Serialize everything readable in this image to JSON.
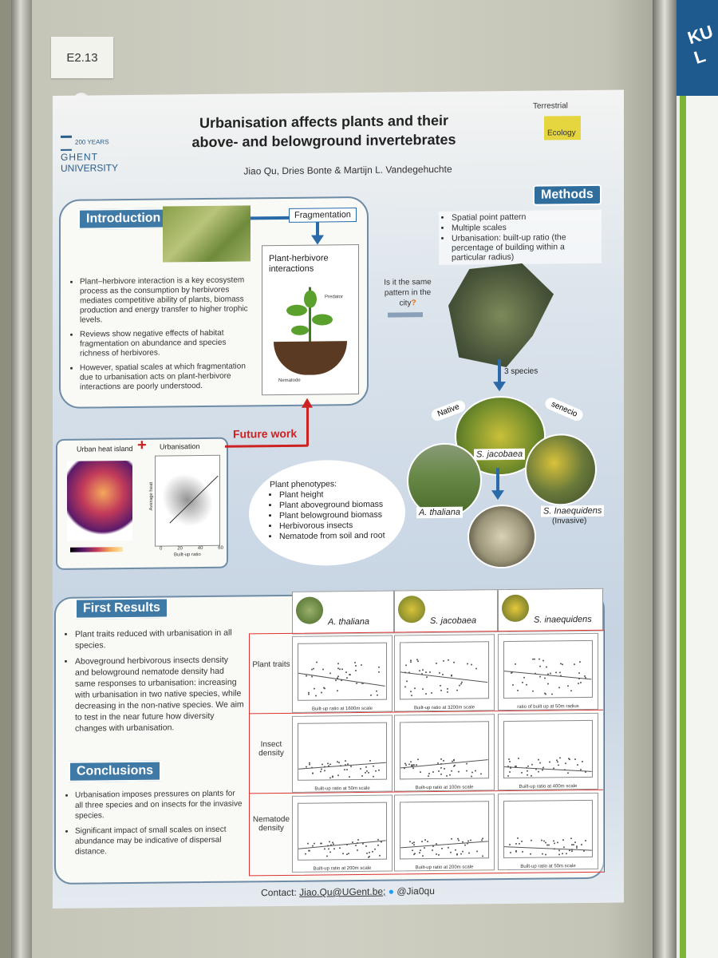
{
  "board": {
    "label": "E2.13"
  },
  "poster": {
    "title_line1": "Urbanisation affects plants and their",
    "title_line2": "above- and belowground invertebrates",
    "authors": "Jiao Qu, Dries Bonte & Martijn L. Vandegehuchte",
    "ugent_logo": {
      "line1": "200 YEARS",
      "line2": "GHENT",
      "line3": "UNIVERSITY"
    },
    "te_logo": {
      "line1": "Terrestrial",
      "line2": "Ecology"
    },
    "introduction": {
      "header": "Introduction",
      "fragmentation": "Fragmentation",
      "ph_interactions": "Plant-herbivore interactions",
      "predator": "Predator",
      "nematode": "Nematode",
      "bullets": [
        "Plant–herbivore interaction is a key ecosystem process as the consumption by herbivores mediates competitive ability of plants, biomass production and energy transfer to higher trophic levels.",
        "Reviews show negative effects of habitat fragmentation on abundance and species richness of herbivores.",
        "However, spatial scales at which fragmentation due to urbanisation acts on plant-herbivore interactions are poorly understood."
      ]
    },
    "methods": {
      "header": "Methods",
      "bullets": [
        "Spatial point pattern",
        "Multiple scales",
        "Urbanisation: built-up ratio (the percentage of building within a particular radius)"
      ],
      "question": "Is it the same pattern in the city",
      "question_mark": "?",
      "three_species": "3 species",
      "native": "Native",
      "senecio": "senecio",
      "sp1": "S. jacobaea",
      "sp2": "A. thaliana",
      "sp3": "S. Inaequidens",
      "sp3_note": "(Invasive)",
      "phenotypes_title": "Plant phenotypes:",
      "phenotypes": [
        "Plant height",
        "Plant aboveground biomass",
        "Plant belowground biomass",
        "Herbivorous insects",
        "Nematode  from soil and root"
      ]
    },
    "urban": {
      "heat_island": "Urban heat island",
      "plus": "+",
      "urbanisation": "Urbanisation",
      "x_label": "Built-up ratio",
      "y_label": "Average heat",
      "x_ticks": [
        "0",
        "20",
        "40",
        "60"
      ]
    },
    "future_work": "Future work",
    "first_results": {
      "header": "First Results",
      "bullets": [
        "Plant traits reduced with urbanisation in all species.",
        "Aboveground herbivorous insects density and belowground nematode density had same responses to urbanisation: increasing with urbanisation in two native species, while decreasing in the non-native species. We aim to test in the near future how diversity changes with urbanisation."
      ],
      "col_heads": [
        "A. thaliana",
        "S. jacobaea",
        "S. inaequidens"
      ],
      "row_heads": [
        "Plant traits",
        "Insect density",
        "Nematode density"
      ],
      "x_labels": [
        [
          "Built-up ratio at 1600m scale",
          "Built-up ratio at 3200m scale",
          "ratio of built up at 50m radius"
        ],
        [
          "Built-up ratio at 50m scale",
          "Built-up ratio at 100m scale",
          "Built-up ratio at 400m scale"
        ],
        [
          "Built-up ratio at 200m scale",
          "Built-up ratio at 200m scale",
          "Built-up ratio at 50m scale"
        ]
      ]
    },
    "conclusions": {
      "header": "Conclusions",
      "bullets": [
        "Urbanisation imposes pressures on plants for all three species and on insects for the invasive species.",
        "Significant impact of small scales on insect abundance may be indicative of dispersal distance."
      ]
    },
    "contact": {
      "label": "Contact:",
      "email": "Jiao.Qu@UGent.be;",
      "twitter": "@Jia0qu"
    }
  },
  "next_poster": {
    "title": "KU L"
  }
}
